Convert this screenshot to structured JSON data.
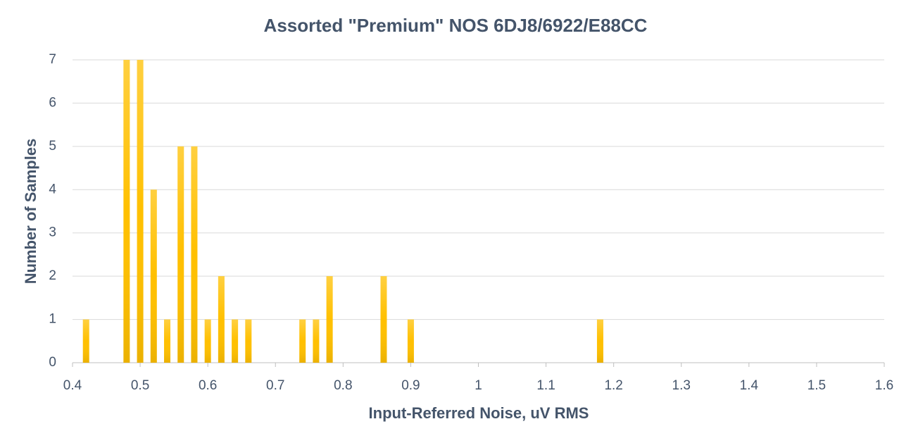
{
  "chart_data": {
    "type": "bar",
    "title": "Assorted \"Premium\" NOS 6DJ8/6922/E88CC",
    "xlabel": "Input-Referred Noise, uV RMS",
    "ylabel": "Number of Samples",
    "x": [
      0.42,
      0.48,
      0.5,
      0.52,
      0.54,
      0.56,
      0.58,
      0.6,
      0.62,
      0.64,
      0.66,
      0.74,
      0.76,
      0.78,
      0.86,
      0.9,
      1.18
    ],
    "values": [
      1,
      7,
      7,
      4,
      1,
      5,
      5,
      1,
      2,
      1,
      1,
      1,
      1,
      2,
      2,
      1,
      1
    ],
    "color": "#ffc000",
    "xlim": [
      0.4,
      1.6
    ],
    "xticks": [
      0.4,
      0.5,
      0.6,
      0.7,
      0.8,
      0.9,
      1,
      1.1,
      1.2,
      1.3,
      1.4,
      1.5,
      1.6
    ],
    "ylim": [
      0,
      7
    ],
    "yticks": [
      0,
      1,
      2,
      3,
      4,
      5,
      6,
      7
    ],
    "grid": true
  }
}
